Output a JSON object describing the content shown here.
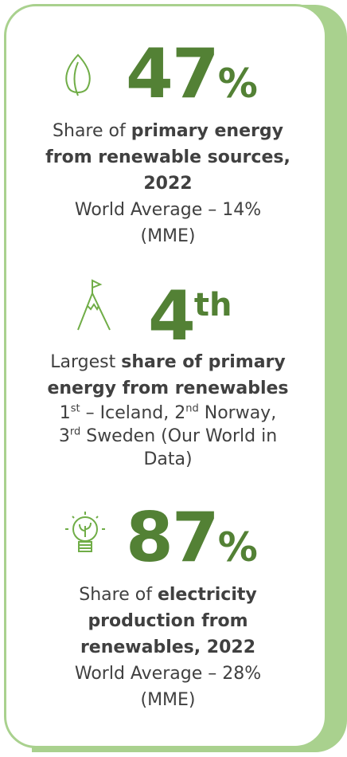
{
  "items": [
    {
      "value": "47",
      "unit": "%",
      "description": [
        {
          "text": "Share of ",
          "style": "normal"
        },
        {
          "text": "primary energy from renewable sources, 2022",
          "style": "bold"
        }
      ],
      "note": [
        {
          "text": "World Average – 14% (MME)",
          "style": "normal"
        }
      ]
    },
    {
      "value": "4",
      "unit": "th",
      "description": [
        {
          "text": "Largest ",
          "style": "normal"
        },
        {
          "text": "share of primary energy from renewables",
          "style": "bold"
        }
      ],
      "note": [
        {
          "text": "1",
          "style": "normal"
        },
        {
          "text": "st",
          "style": "sup"
        },
        {
          "text": " – Iceland, 2",
          "style": "normal"
        },
        {
          "text": "nd",
          "style": "sup"
        },
        {
          "text": " Norway, 3",
          "style": "normal"
        },
        {
          "text": "rd",
          "style": "sup"
        },
        {
          "text": " Sweden (Our World in Data)",
          "style": "normal"
        }
      ]
    },
    {
      "value": "87",
      "unit": "%",
      "description": [
        {
          "text": "Share of ",
          "style": "normal"
        },
        {
          "text": "electricity production from renewables, 2022",
          "style": "bold"
        }
      ],
      "note": [
        {
          "text": "World Average – 28% (MME)",
          "style": "normal"
        }
      ]
    }
  ]
}
